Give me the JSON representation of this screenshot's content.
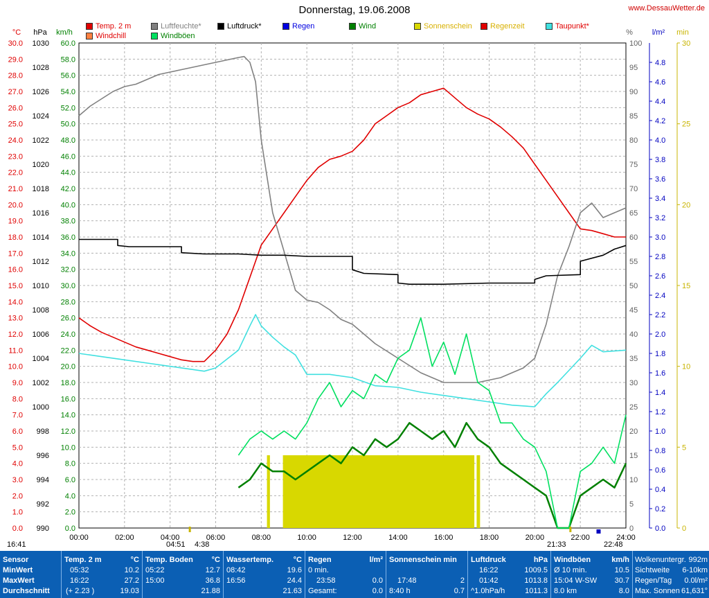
{
  "title": "Donnerstag, 19.06.2008",
  "site": "www.DessauWetter.de",
  "legend": [
    {
      "label": "Temp. 2 m",
      "color": "#e00000",
      "text_color": "#e00000"
    },
    {
      "label": "Luftfeuchte*",
      "color": "#808080",
      "text_color": "#808080"
    },
    {
      "label": "Luftdruck*",
      "color": "#000000",
      "text_color": "#000000"
    },
    {
      "label": "Regen",
      "color": "#0000e0",
      "text_color": "#0000e0"
    },
    {
      "label": "Wind",
      "color": "#008000",
      "text_color": "#008000"
    },
    {
      "label": "Sonnenschein",
      "color": "#d8d800",
      "text_color": "#d8b000"
    },
    {
      "label": "Regenzeit",
      "color": "#e00000",
      "text_color": "#d8b000"
    },
    {
      "label": "Taupunkt*",
      "color": "#40e0e0",
      "text_color": "#e00000"
    },
    {
      "label": "Windchill",
      "color": "#ff8040",
      "text_color": "#e00000"
    },
    {
      "label": "Windböen",
      "color": "#00e060",
      "text_color": "#008000"
    }
  ],
  "axis_units": {
    "temp": "°C",
    "pressure": "hPa",
    "wind": "km/h",
    "humidity": "%",
    "rain": "l/m²",
    "sun": "min"
  },
  "axis_ticks": {
    "temp": [
      "30.0",
      "29.0",
      "28.0",
      "27.0",
      "26.0",
      "25.0",
      "24.0",
      "23.0",
      "22.0",
      "21.0",
      "20.0",
      "19.0",
      "18.0",
      "17.0",
      "16.0",
      "15.0",
      "14.0",
      "13.0",
      "12.0",
      "11.0",
      "10.0",
      "9.0",
      "8.0",
      "7.0",
      "6.0",
      "5.0",
      "4.0",
      "3.0",
      "2.0",
      "1.0",
      "0.0"
    ],
    "pressure": [
      "1030",
      "1028",
      "1026",
      "1024",
      "1022",
      "1020",
      "1018",
      "1016",
      "1014",
      "1012",
      "1010",
      "1008",
      "1006",
      "1004",
      "1002",
      "1000",
      "998",
      "996",
      "994",
      "992",
      "990"
    ],
    "wind": [
      "60.0",
      "58.0",
      "56.0",
      "54.0",
      "52.0",
      "50.0",
      "48.0",
      "46.0",
      "44.0",
      "42.0",
      "40.0",
      "38.0",
      "36.0",
      "34.0",
      "32.0",
      "30.0",
      "28.0",
      "26.0",
      "24.0",
      "22.0",
      "20.0",
      "18.0",
      "16.0",
      "14.0",
      "12.0",
      "10.0",
      "8.0",
      "6.0",
      "4.0",
      "2.0",
      "0.0"
    ],
    "humidity": [
      "100",
      "95",
      "90",
      "85",
      "80",
      "75",
      "70",
      "65",
      "60",
      "55",
      "50",
      "45",
      "40",
      "35",
      "30",
      "25",
      "20",
      "15",
      "10",
      "5",
      "0"
    ],
    "rain": [
      "4.8",
      "4.6",
      "4.4",
      "4.2",
      "4.0",
      "3.8",
      "3.6",
      "3.4",
      "3.2",
      "3.0",
      "2.8",
      "2.6",
      "2.4",
      "2.2",
      "2.0",
      "1.8",
      "1.6",
      "1.4",
      "1.2",
      "1.0",
      "0.8",
      "0.6",
      "0.4",
      "0.2",
      "0.0"
    ],
    "sun": [
      "30",
      "25",
      "20",
      "15",
      "10",
      "5",
      "0"
    ],
    "time": [
      "00:00",
      "02:00",
      "04:00",
      "06:00",
      "08:00",
      "10:00",
      "12:00",
      "14:00",
      "16:00",
      "18:00",
      "20:00",
      "22:00",
      "24:00"
    ]
  },
  "under_axis": {
    "sunrise": "04:51",
    "daylen_start": "4:38",
    "sunset": "21:33",
    "moon": "22:48",
    "left_time": "16:41"
  },
  "chart_data": {
    "type": "line",
    "xlabel": "",
    "ylabel": "",
    "x_range": [
      0,
      24
    ],
    "ylim_temp": [
      0,
      30
    ],
    "ylim_pressure": [
      990,
      1030
    ],
    "ylim_wind": [
      0,
      60
    ],
    "ylim_humidity": [
      0,
      100
    ],
    "ylim_rain": [
      0,
      5
    ],
    "ylim_sun": [
      0,
      30
    ],
    "grid": true,
    "series": [
      {
        "name": "Temp. 2 m",
        "axis": "temp",
        "color": "#e00000",
        "x": [
          0,
          0.5,
          1,
          1.5,
          2,
          2.5,
          3,
          3.5,
          4,
          4.5,
          5,
          5.5,
          6,
          6.5,
          7,
          7.5,
          8,
          8.5,
          9,
          9.5,
          10,
          10.5,
          11,
          11.5,
          12,
          12.5,
          13,
          13.5,
          14,
          14.5,
          15,
          15.5,
          16,
          16.5,
          17,
          17.5,
          18,
          18.5,
          19,
          19.5,
          20,
          20.5,
          21,
          21.5,
          22,
          22.5,
          23,
          23.5,
          24
        ],
        "y": [
          13.0,
          12.5,
          12.1,
          11.8,
          11.5,
          11.2,
          11.0,
          10.8,
          10.6,
          10.4,
          10.3,
          10.3,
          11.0,
          12.0,
          13.5,
          15.5,
          17.5,
          18.5,
          19.5,
          20.5,
          21.5,
          22.3,
          22.8,
          23.0,
          23.3,
          24.0,
          25.0,
          25.5,
          26.0,
          26.3,
          26.8,
          27.0,
          27.2,
          26.6,
          26.0,
          25.6,
          25.3,
          24.8,
          24.2,
          23.5,
          22.5,
          21.5,
          20.5,
          19.5,
          18.5,
          18.4,
          18.2,
          18.0,
          18.0
        ]
      },
      {
        "name": "Luftfeuchte*",
        "axis": "humidity",
        "color": "#808080",
        "x": [
          0,
          0.5,
          1,
          1.5,
          2,
          2.5,
          3,
          3.5,
          4,
          4.5,
          5,
          5.5,
          6,
          6.5,
          7,
          7.25,
          7.5,
          7.75,
          8,
          8.5,
          9,
          9.5,
          10,
          10.5,
          11,
          11.5,
          12,
          12.5,
          13,
          13.5,
          14,
          14.5,
          15,
          15.5,
          16,
          16.5,
          17,
          17.5,
          18,
          18.5,
          19,
          19.5,
          20,
          20.5,
          21,
          21.5,
          22,
          22.5,
          23,
          23.5,
          24
        ],
        "y": [
          85,
          87,
          88.5,
          90,
          91,
          91.5,
          92.5,
          93.5,
          94,
          94.5,
          95,
          95.5,
          96,
          96.5,
          97,
          97.2,
          96,
          92,
          80,
          65,
          57,
          49,
          47,
          46.5,
          45,
          43,
          42,
          40,
          38,
          36.5,
          35,
          33.5,
          32,
          31,
          30,
          30,
          30,
          30,
          30.5,
          31,
          32,
          33,
          35,
          42,
          52,
          58,
          65,
          67,
          64,
          65,
          66
        ]
      },
      {
        "name": "Luftdruck*",
        "axis": "pressure",
        "color": "#000000",
        "x": [
          0,
          1.7,
          1.7,
          2.2,
          4.5,
          4.5,
          5.5,
          7,
          8,
          9,
          10,
          11,
          12,
          12,
          12.5,
          14,
          14,
          14.5,
          16,
          18,
          20,
          20,
          20.5,
          22,
          22,
          23,
          23.5,
          24
        ],
        "y": [
          1013.8,
          1013.8,
          1013.3,
          1013.2,
          1013.2,
          1012.7,
          1012.6,
          1012.6,
          1012.5,
          1012.5,
          1012.4,
          1012.4,
          1012.4,
          1011.3,
          1011.0,
          1010.9,
          1010.2,
          1010.1,
          1010.1,
          1010.2,
          1010.2,
          1010.5,
          1010.8,
          1010.9,
          1012.0,
          1012.5,
          1013.0,
          1013.3
        ]
      },
      {
        "name": "Taupunkt*",
        "axis": "temp",
        "color": "#40e0e0",
        "x": [
          0,
          1,
          2,
          3,
          4,
          5,
          5.5,
          6,
          7,
          7.5,
          7.75,
          8,
          8.5,
          9,
          9.5,
          10,
          11,
          12,
          13,
          14,
          15,
          16,
          17,
          18,
          19,
          20,
          20.5,
          21,
          22,
          22.5,
          23,
          24
        ],
        "y": [
          10.8,
          10.6,
          10.4,
          10.2,
          10.0,
          9.8,
          9.7,
          9.9,
          11.0,
          12.5,
          13.2,
          12.5,
          11.8,
          11.2,
          10.7,
          9.5,
          9.5,
          9.3,
          8.8,
          8.7,
          8.4,
          8.2,
          8.0,
          7.8,
          7.6,
          7.5,
          8.3,
          9.0,
          10.5,
          11.3,
          10.9,
          11.0
        ]
      },
      {
        "name": "Wind",
        "axis": "wind",
        "color": "#008000",
        "x": [
          7,
          7.5,
          8,
          8.5,
          9,
          9.5,
          10,
          10.5,
          11,
          11.5,
          12,
          12.5,
          13,
          13.5,
          14,
          14.5,
          15,
          15.5,
          16,
          16.5,
          17,
          17.5,
          18,
          18.5,
          19,
          19.5,
          20,
          20.5,
          21,
          21.5,
          22,
          22.5,
          23,
          23.5,
          24
        ],
        "y": [
          5,
          6,
          8,
          7,
          7,
          6,
          7,
          8,
          9,
          8,
          10,
          9,
          11,
          10,
          11,
          13,
          12,
          11,
          12,
          10,
          13,
          11,
          10,
          8,
          7,
          6,
          5,
          4,
          0,
          0,
          4,
          5,
          6,
          5,
          8
        ]
      },
      {
        "name": "Windböen",
        "axis": "wind",
        "color": "#00e060",
        "x": [
          7,
          7.5,
          8,
          8.5,
          9,
          9.5,
          10,
          10.5,
          11,
          11.5,
          12,
          12.5,
          13,
          13.5,
          14,
          14.5,
          15,
          15.5,
          16,
          16.5,
          17,
          17.5,
          18,
          18.5,
          19,
          19.5,
          20,
          20.5,
          21,
          21.5,
          22,
          22.5,
          23,
          23.5,
          24
        ],
        "y": [
          9,
          11,
          12,
          11,
          12,
          11,
          13,
          16,
          18,
          15,
          17,
          16,
          19,
          18,
          21,
          22,
          26,
          20,
          23,
          19,
          24,
          18,
          17,
          13,
          13,
          11,
          10,
          7,
          0,
          0,
          7,
          8,
          10,
          8,
          14
        ]
      }
    ],
    "sunshine_bars": {
      "name": "Sonnenschein",
      "axis": "sun",
      "color": "#d8d800",
      "x_start": [
        8.25,
        8.95,
        17.45
      ],
      "x_end": [
        8.38,
        17.35,
        17.6
      ],
      "value": [
        4.5,
        4.5,
        4.5
      ]
    },
    "annotations": [
      {
        "name": "Regenzeit",
        "color": "#e00000",
        "value": null
      },
      {
        "name": "Regen",
        "color": "#0000e0",
        "value": 0.0
      }
    ]
  },
  "stats": {
    "sensor": {
      "header": "Sensor",
      "rows": [
        "MinWert",
        "MaxWert",
        "Durchschnitt"
      ]
    },
    "temp": {
      "header": "Temp. 2 m",
      "unit": "°C",
      "rows": [
        [
          "05:32",
          "10.2"
        ],
        [
          "16:22",
          "27.2"
        ],
        [
          "(+ 2.23 )",
          "19.03"
        ]
      ]
    },
    "boden": {
      "header": "Temp. Boden",
      "unit": "°C",
      "rows": [
        [
          "05:22",
          "12.7"
        ],
        [
          "15:00",
          "36.8"
        ],
        [
          "",
          "21.88"
        ]
      ]
    },
    "wasser": {
      "header": "Wassertemp.",
      "unit": "°C",
      "rows": [
        [
          "08:42",
          "19.6"
        ],
        [
          "16:56",
          "24.4"
        ],
        [
          "",
          "21.63"
        ]
      ]
    },
    "regen": {
      "header": "Regen",
      "unit": "l/m²",
      "rows": [
        [
          "0 min.",
          ""
        ],
        [
          "23:58",
          "0.0"
        ],
        [
          "Gesamt:",
          "0.0"
        ]
      ]
    },
    "sonne": {
      "header": "Sonnenschein min",
      "unit": "",
      "rows": [
        [
          "",
          ""
        ],
        [
          "17:48",
          "2"
        ],
        [
          "8:40 h",
          "0.7"
        ]
      ]
    },
    "druck": {
      "header": "Luftdruck",
      "unit": "hPa",
      "rows": [
        [
          "16:22",
          "1009.5"
        ],
        [
          "01:42",
          "1013.8"
        ],
        [
          "^1.0hPa/h",
          "1011.3"
        ]
      ]
    },
    "boeen": {
      "header": "Windböen",
      "unit": "km/h",
      "rows": [
        [
          "Ø 10 min.",
          "10.5"
        ],
        [
          "15:04  W-SW",
          "30.7"
        ],
        [
          "8.0 km",
          "8.0"
        ]
      ]
    },
    "extra": {
      "rows": [
        [
          "Wolkenuntergr.",
          "992m"
        ],
        [
          "Sichtweite",
          "6-10km"
        ],
        [
          "Regen/Tag",
          "0.0l/m²"
        ],
        [
          "Max. Sonnen",
          "61,631°"
        ]
      ]
    }
  }
}
